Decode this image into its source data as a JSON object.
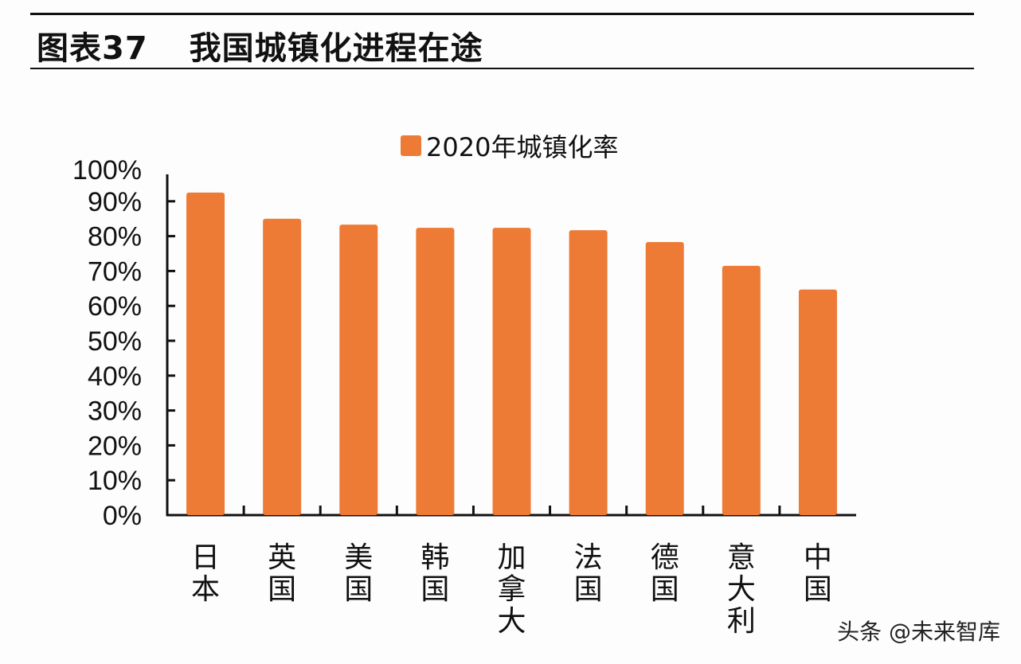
{
  "header": {
    "figure_label": "图表37",
    "title": "我国城镇化进程在途"
  },
  "watermark": "头条 @未来智库",
  "chart_data": {
    "type": "bar",
    "title": "",
    "xlabel": "",
    "ylabel": "",
    "categories": [
      "日本",
      "英国",
      "美国",
      "韩国",
      "加拿大",
      "法国",
      "德国",
      "意大利",
      "中国"
    ],
    "series": [
      {
        "name": "2020年城镇化率",
        "values": [
          92.5,
          85.0,
          83.3,
          82.4,
          82.4,
          81.7,
          78.3,
          71.5,
          64.7
        ],
        "color": "#ee7b35"
      }
    ],
    "ylim": [
      0,
      100
    ],
    "yticks": [
      "0%",
      "10%",
      "20%",
      "30%",
      "40%",
      "50%",
      "60%",
      "70%",
      "80%",
      "90%",
      "100%"
    ],
    "grid": false,
    "legend": "top-center"
  }
}
